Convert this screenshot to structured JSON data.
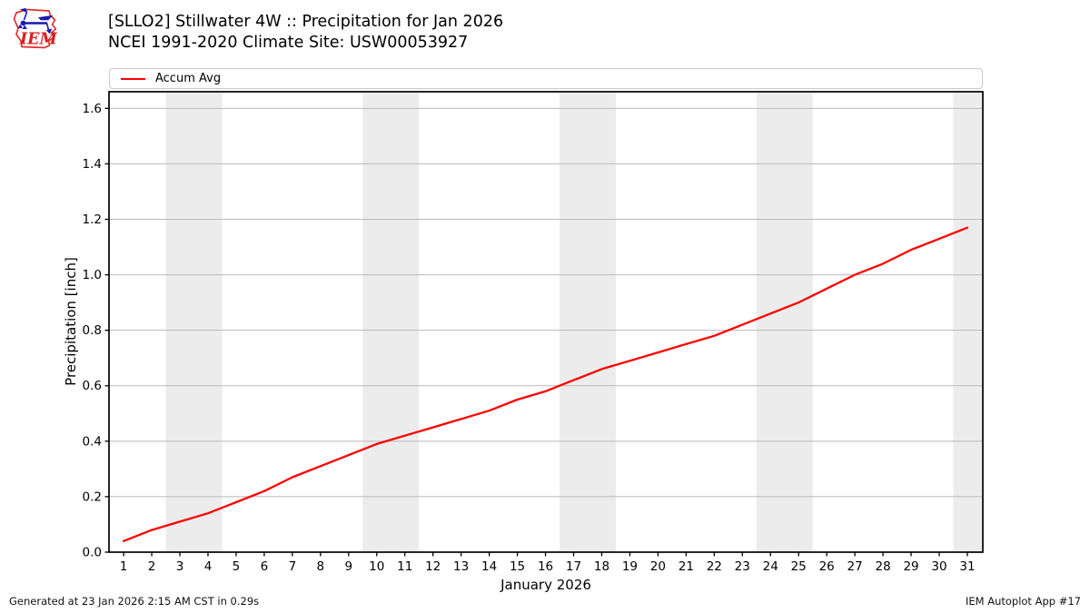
{
  "logo": {
    "text": "IEM"
  },
  "footer": {
    "generated": "Generated at 23 Jan 2026 2:15 AM CST in 0.29s",
    "app": "IEM Autoplot App #17"
  },
  "chart_data": {
    "type": "line",
    "title": "[SLLO2] Stillwater 4W :: Precipitation for Jan 2026",
    "subtitle": "NCEI 1991-2020 Climate Site: USW00053927",
    "xlabel": "January 2026",
    "ylabel": "Precipitation [inch]",
    "x": [
      1,
      2,
      3,
      4,
      5,
      6,
      7,
      8,
      9,
      10,
      11,
      12,
      13,
      14,
      15,
      16,
      17,
      18,
      19,
      20,
      21,
      22,
      23,
      24,
      25,
      26,
      27,
      28,
      29,
      30,
      31
    ],
    "series": [
      {
        "name": "Accum Avg",
        "color": "#ff0000",
        "values": [
          0.04,
          0.08,
          0.11,
          0.14,
          0.18,
          0.22,
          0.27,
          0.31,
          0.35,
          0.39,
          0.42,
          0.45,
          0.48,
          0.51,
          0.55,
          0.58,
          0.62,
          0.66,
          0.69,
          0.72,
          0.75,
          0.78,
          0.82,
          0.86,
          0.9,
          0.95,
          1.0,
          1.04,
          1.09,
          1.13,
          1.17
        ]
      }
    ],
    "xlim": [
      0.48,
      31.55
    ],
    "ylim": [
      0,
      1.66
    ],
    "xticks": [
      1,
      2,
      3,
      4,
      5,
      6,
      7,
      8,
      9,
      10,
      11,
      12,
      13,
      14,
      15,
      16,
      17,
      18,
      19,
      20,
      21,
      22,
      23,
      24,
      25,
      26,
      27,
      28,
      29,
      30,
      31
    ],
    "yticks": [
      0.0,
      0.2,
      0.4,
      0.6,
      0.8,
      1.0,
      1.2,
      1.4,
      1.6
    ],
    "weekend_bands": [
      [
        2.5,
        4.5
      ],
      [
        9.5,
        11.5
      ],
      [
        16.5,
        18.5
      ],
      [
        23.5,
        25.5
      ],
      [
        30.5,
        31.55
      ]
    ],
    "grid": true,
    "legend_position": "top",
    "colors": {
      "band": "#ececec",
      "grid": "#b9b9b9",
      "frame": "#000000"
    }
  }
}
